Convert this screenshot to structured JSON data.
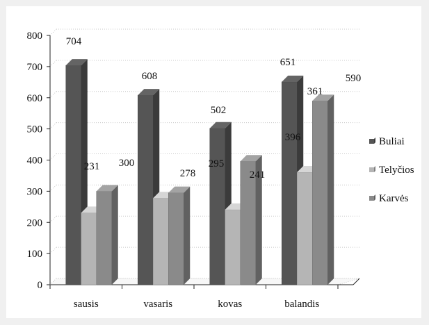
{
  "chart_data": {
    "type": "bar",
    "style": "3d-clustered-column",
    "categories": [
      "sausis",
      "vasaris",
      "kovas",
      "balandis"
    ],
    "series": [
      {
        "name": "Buliai",
        "values": [
          704,
          608,
          502,
          651
        ],
        "color": "#555555"
      },
      {
        "name": "Telyčios",
        "values": [
          231,
          278,
          241,
          361
        ],
        "color": "#b5b5b5"
      },
      {
        "name": "Karvės",
        "values": [
          300,
          295,
          396,
          590
        ],
        "color": "#8a8a8a"
      }
    ],
    "title": "",
    "xlabel": "",
    "ylabel": "",
    "ylim": [
      0,
      800
    ],
    "yticks": [
      0,
      100,
      200,
      300,
      400,
      500,
      600,
      700,
      800
    ],
    "grid": true,
    "legend_position": "right",
    "data_labels": true
  }
}
